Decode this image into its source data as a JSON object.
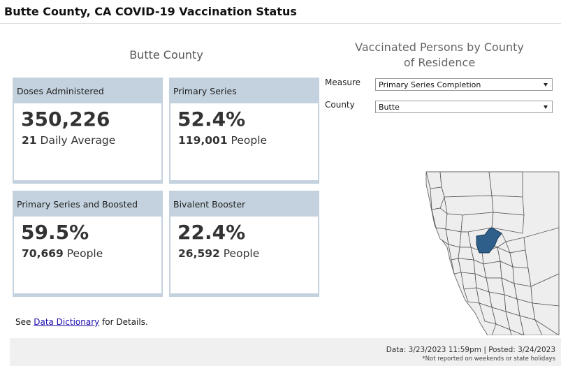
{
  "header": {
    "title": "Butte County, CA COVID-19 Vaccination Status"
  },
  "county_panel": {
    "title": "Butte County",
    "cards": [
      {
        "label": "Doses Administered",
        "value": "350,226",
        "sub_number": "21",
        "sub_text": "Daily Average"
      },
      {
        "label": "Primary Series",
        "value": "52.4%",
        "sub_number": "119,001",
        "sub_text": "People"
      },
      {
        "label": "Primary Series and Boosted",
        "value": "59.5%",
        "sub_number": "70,669",
        "sub_text": "People"
      },
      {
        "label": "Bivalent Booster",
        "value": "22.4%",
        "sub_number": "26,592",
        "sub_text": "People"
      }
    ],
    "see_prefix": "See",
    "see_link": "Data Dictionary",
    "see_suffix": "for Details."
  },
  "map_panel": {
    "title": "Vaccinated Persons by County of Residence",
    "measure_label": "Measure",
    "measure_value": "Primary Series Completion",
    "county_label": "County",
    "county_value": "Butte",
    "highlight_color": "#2e5f8a",
    "county_fill_color": "#eeeeee"
  },
  "footer": {
    "data_line": "Data: 3/23/2023 11:59pm | Posted: 3/24/2023",
    "note": "*Not reported on weekends or state holidays"
  }
}
